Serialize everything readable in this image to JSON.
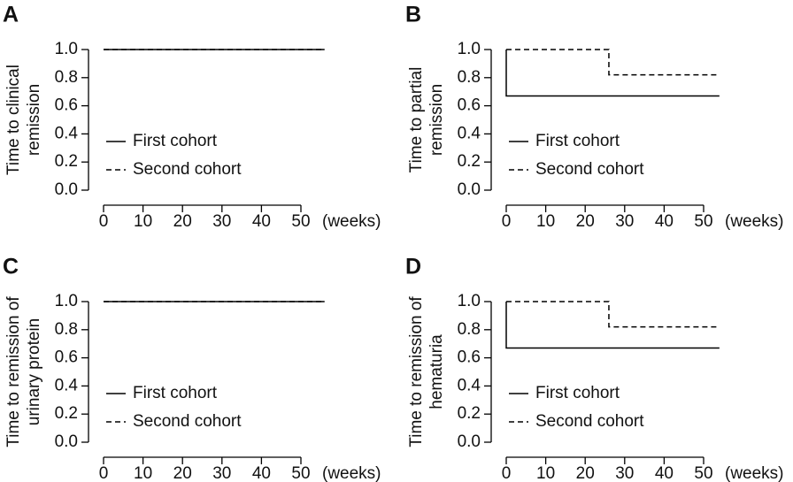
{
  "chart_data": [
    {
      "type": "line",
      "panel": "A",
      "ylabel": [
        "Time to clinical",
        "remission"
      ],
      "xlabel": "(weeks)",
      "xlim": [
        -2,
        57
      ],
      "xticks": [
        0,
        10,
        20,
        30,
        40,
        50
      ],
      "ylim": [
        0,
        1
      ],
      "yticks": [
        {
          "value": 0,
          "label": "0.0"
        },
        {
          "value": 0.2,
          "label": "0.2"
        },
        {
          "value": 0.4,
          "label": "0.4"
        },
        {
          "value": 0.6,
          "label": "0.6"
        },
        {
          "value": 0.8,
          "label": "0.8"
        },
        {
          "value": 1,
          "label": "1.0"
        }
      ],
      "series": [
        {
          "name": "First cohort",
          "color": "#000000",
          "dash": "solid",
          "x": [
            0,
            56
          ],
          "values": [
            1,
            1
          ]
        },
        {
          "name": "Second cohort",
          "color": "#000000",
          "dash": "dashed",
          "x": [
            0,
            56
          ],
          "values": [
            1,
            1
          ]
        }
      ]
    },
    {
      "type": "line",
      "panel": "B",
      "ylabel": [
        "Time to partial",
        "remission"
      ],
      "xlabel": "(weeks)",
      "xlim": [
        -2,
        57
      ],
      "xticks": [
        0,
        10,
        20,
        30,
        40,
        50
      ],
      "ylim": [
        0,
        1
      ],
      "yticks": [
        {
          "value": 0,
          "label": "0.0"
        },
        {
          "value": 0.2,
          "label": "0.2"
        },
        {
          "value": 0.4,
          "label": "0.4"
        },
        {
          "value": 0.6,
          "label": "0.6"
        },
        {
          "value": 0.8,
          "label": "0.8"
        },
        {
          "value": 1,
          "label": "1.0"
        }
      ],
      "series": [
        {
          "name": "First cohort",
          "color": "#000000",
          "dash": "solid",
          "x": [
            0,
            0,
            54
          ],
          "values": [
            1,
            0.67,
            0.67
          ]
        },
        {
          "name": "Second cohort",
          "color": "#000000",
          "dash": "dashed",
          "x": [
            0,
            26,
            26,
            54
          ],
          "values": [
            1,
            1,
            0.82,
            0.82
          ]
        }
      ]
    },
    {
      "type": "line",
      "panel": "C",
      "ylabel": [
        "Time to remission of",
        "urinary protein"
      ],
      "xlabel": "(weeks)",
      "xlim": [
        -2,
        57
      ],
      "xticks": [
        0,
        10,
        20,
        30,
        40,
        50
      ],
      "ylim": [
        0,
        1
      ],
      "yticks": [
        {
          "value": 0,
          "label": "0.0"
        },
        {
          "value": 0.2,
          "label": "0.2"
        },
        {
          "value": 0.4,
          "label": "0.4"
        },
        {
          "value": 0.6,
          "label": "0.6"
        },
        {
          "value": 0.8,
          "label": "0.8"
        },
        {
          "value": 1,
          "label": "1.0"
        }
      ],
      "series": [
        {
          "name": "First cohort",
          "color": "#000000",
          "dash": "solid",
          "x": [
            0,
            56
          ],
          "values": [
            1,
            1
          ]
        },
        {
          "name": "Second cohort",
          "color": "#000000",
          "dash": "dashed",
          "x": [
            0,
            56
          ],
          "values": [
            1,
            1
          ]
        }
      ]
    },
    {
      "type": "line",
      "panel": "D",
      "ylabel": [
        "Time to remission of",
        "hematuria"
      ],
      "xlabel": "(weeks)",
      "xlim": [
        -2,
        57
      ],
      "xticks": [
        0,
        10,
        20,
        30,
        40,
        50
      ],
      "ylim": [
        0,
        1
      ],
      "yticks": [
        {
          "value": 0,
          "label": "0.0"
        },
        {
          "value": 0.2,
          "label": "0.2"
        },
        {
          "value": 0.4,
          "label": "0.4"
        },
        {
          "value": 0.6,
          "label": "0.6"
        },
        {
          "value": 0.8,
          "label": "0.8"
        },
        {
          "value": 1,
          "label": "1.0"
        }
      ],
      "series": [
        {
          "name": "First cohort",
          "color": "#000000",
          "dash": "solid",
          "x": [
            0,
            0,
            54
          ],
          "values": [
            1,
            0.67,
            0.67
          ]
        },
        {
          "name": "Second cohort",
          "color": "#000000",
          "dash": "dashed",
          "x": [
            0,
            26,
            26,
            54
          ],
          "values": [
            1,
            1,
            0.82,
            0.82
          ]
        }
      ]
    }
  ]
}
